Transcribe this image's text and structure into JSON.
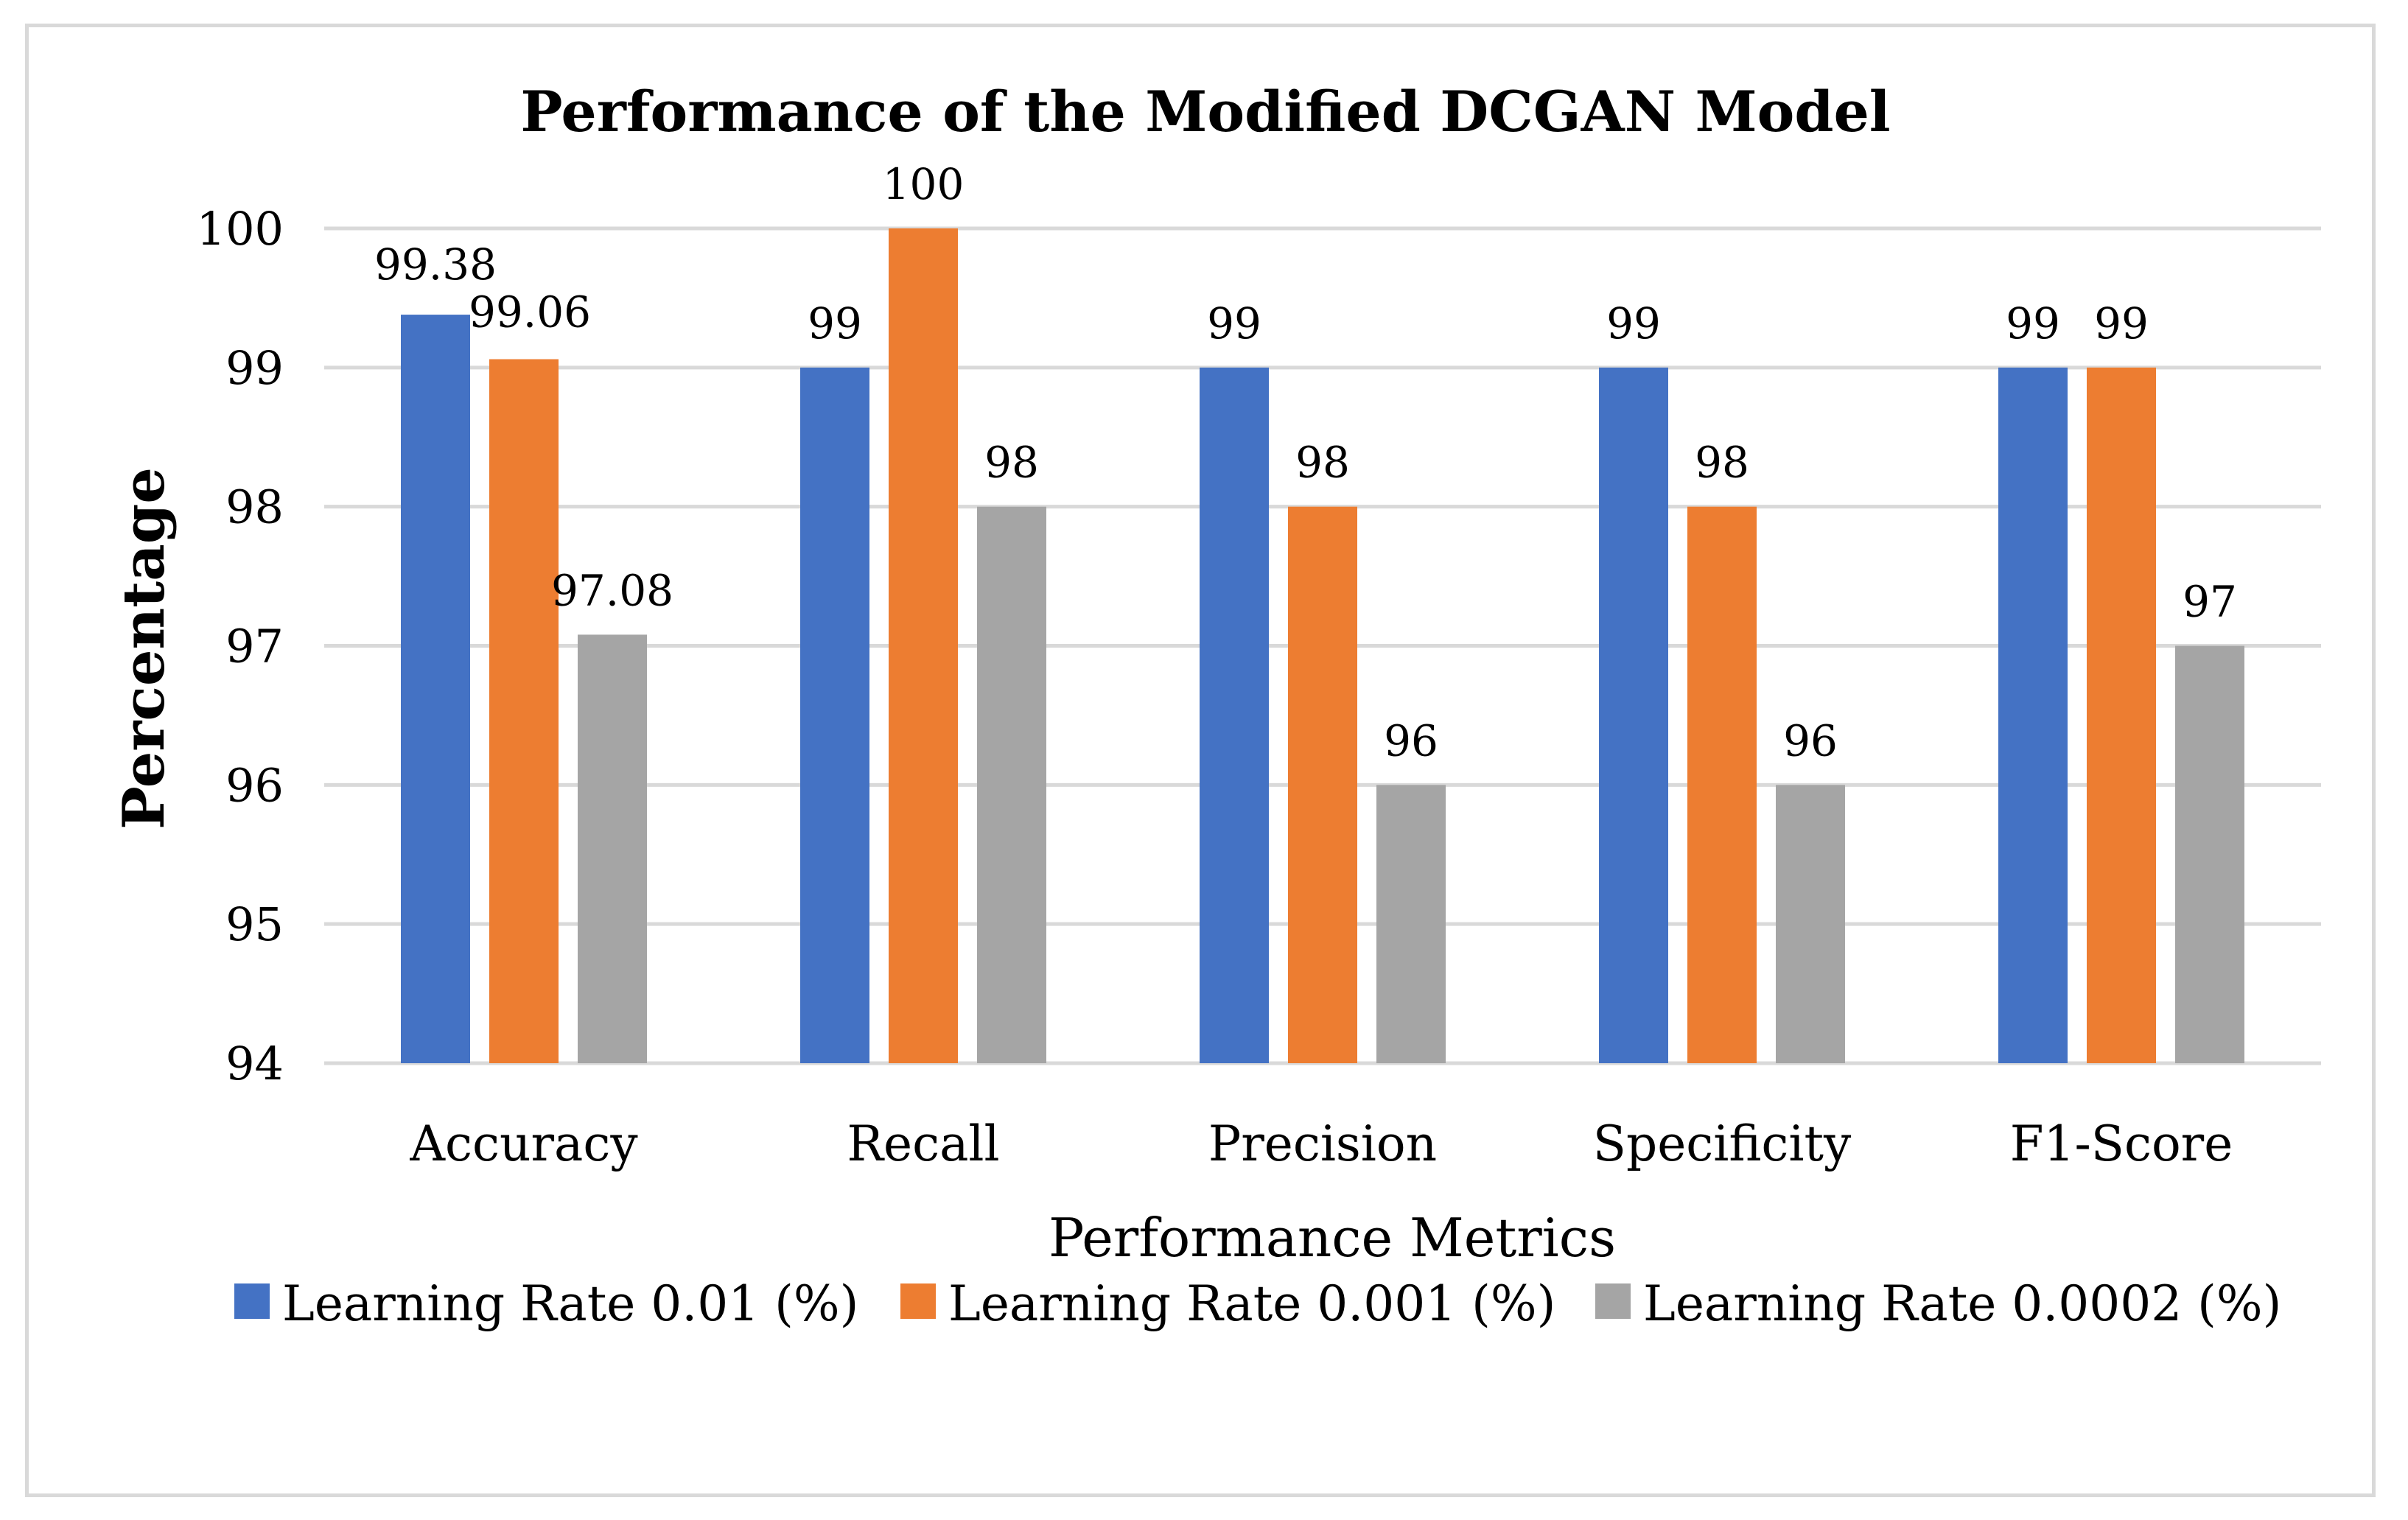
{
  "chart_data": {
    "type": "bar",
    "title": "Performance of the Modified DCGAN Model",
    "xlabel": "Performance Metrics",
    "ylabel": "Percentage",
    "ylim": [
      94,
      100
    ],
    "yticks": [
      94,
      95,
      96,
      97,
      98,
      99,
      100
    ],
    "grid": true,
    "legend_position": "bottom",
    "categories": [
      "Accuracy",
      "Recall",
      "Precision",
      "Specificity",
      "F1-Score"
    ],
    "series": [
      {
        "name": "Learning Rate 0.01 (%)",
        "color": "#4472c4",
        "values": [
          99.38,
          99,
          99,
          99,
          99
        ],
        "labels": [
          "99.38",
          "99",
          "99",
          "99",
          "99"
        ]
      },
      {
        "name": "Learning Rate 0.001 (%)",
        "color": "#ed7d31",
        "values": [
          99.06,
          100,
          98,
          98,
          99
        ],
        "labels": [
          "99.06",
          "100",
          "98",
          "98",
          "99"
        ]
      },
      {
        "name": "Learning Rate 0.0002 (%)",
        "color": "#a5a5a5",
        "values": [
          97.08,
          98,
          96,
          96,
          97
        ],
        "labels": [
          "97.08",
          "98",
          "96",
          "96",
          "97"
        ]
      }
    ]
  }
}
